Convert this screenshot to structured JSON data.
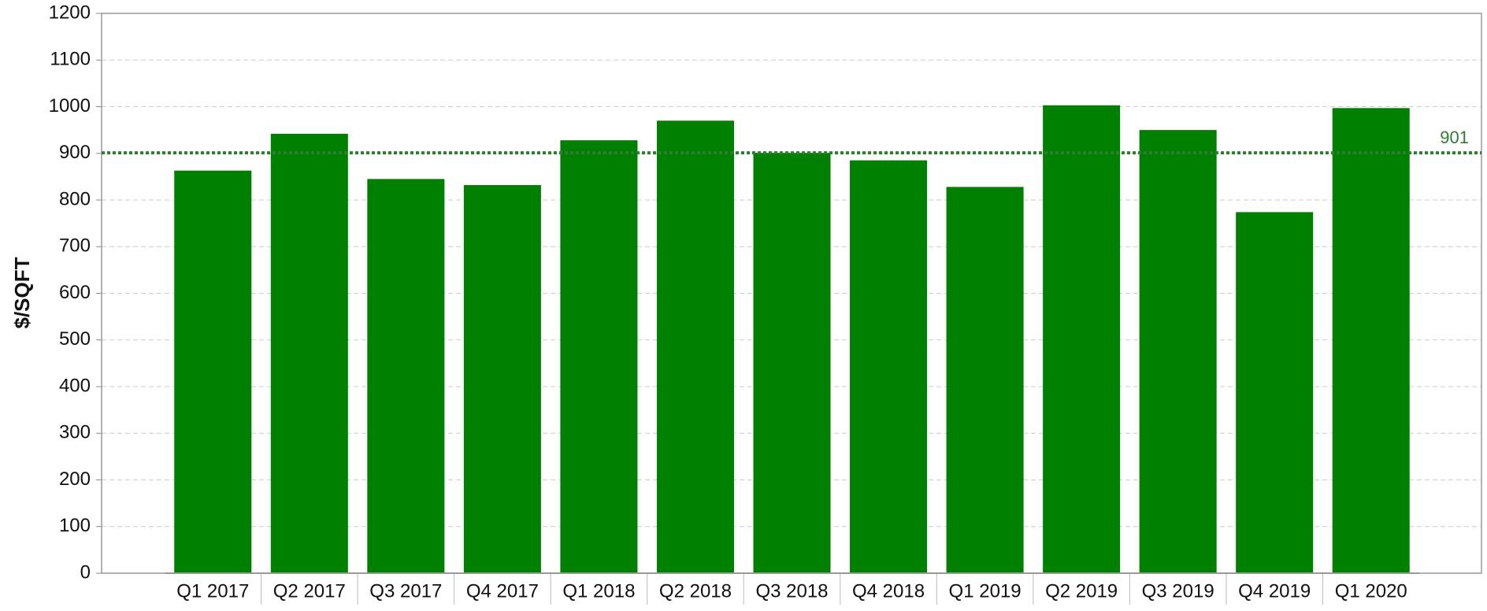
{
  "chart_data": {
    "type": "bar",
    "y_label": "$/SQFT",
    "categories": [
      "Q1 2017",
      "Q2 2017",
      "Q3 2017",
      "Q4 2017",
      "Q1 2018",
      "Q2 2018",
      "Q3 2018",
      "Q4 2018",
      "Q1 2019",
      "Q2 2019",
      "Q3 2019",
      "Q4 2019",
      "Q1 2020"
    ],
    "values": [
      863,
      942,
      845,
      832,
      928,
      970,
      901,
      885,
      828,
      1003,
      950,
      774,
      997
    ],
    "color": "#008000",
    "ylim": [
      0,
      1200
    ],
    "yticks": [
      0,
      100,
      200,
      300,
      400,
      500,
      600,
      700,
      800,
      900,
      1000,
      1100,
      1200
    ],
    "grid": true,
    "reference_line": {
      "value": 901,
      "color": "#2e7d32"
    }
  }
}
